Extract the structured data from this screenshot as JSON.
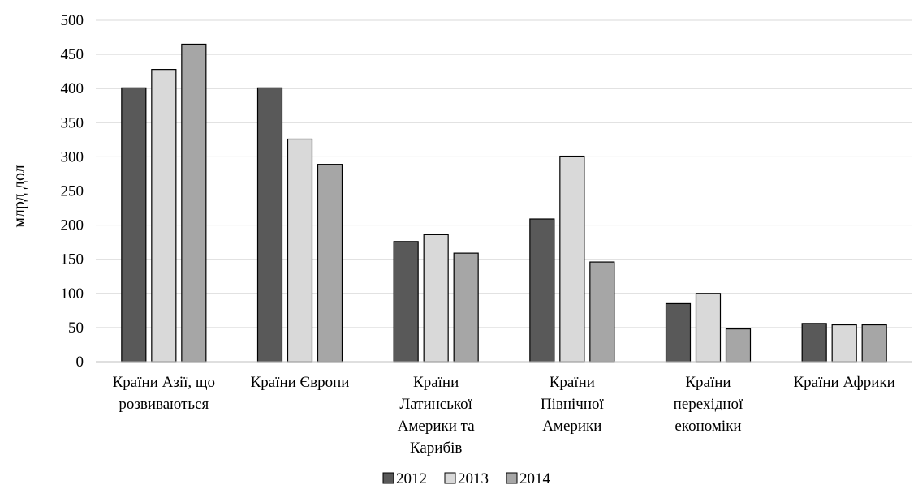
{
  "chart_data": {
    "type": "bar",
    "ylabel": "млрд дол",
    "ylim": [
      0,
      500
    ],
    "yticks": [
      0,
      50,
      100,
      150,
      200,
      250,
      300,
      350,
      400,
      450,
      500
    ],
    "grid": true,
    "legend_position": "bottom",
    "categories": [
      [
        "Країни Азії, що",
        "розвиваються"
      ],
      [
        "Країни Європи"
      ],
      [
        "Країни",
        "Латинської",
        "Америки та",
        "Карибів"
      ],
      [
        "Країни",
        "Північної",
        "Америки"
      ],
      [
        "Країни",
        "перехідної",
        "економіки"
      ],
      [
        "Країни Африки"
      ]
    ],
    "series": [
      {
        "name": "2012",
        "color": "#595959",
        "values": [
          401,
          401,
          176,
          209,
          85,
          56
        ]
      },
      {
        "name": "2013",
        "color": "#d9d9d9",
        "values": [
          428,
          326,
          186,
          301,
          100,
          54
        ]
      },
      {
        "name": "2014",
        "color": "#a6a6a6",
        "values": [
          465,
          289,
          159,
          146,
          48,
          54
        ]
      }
    ]
  }
}
